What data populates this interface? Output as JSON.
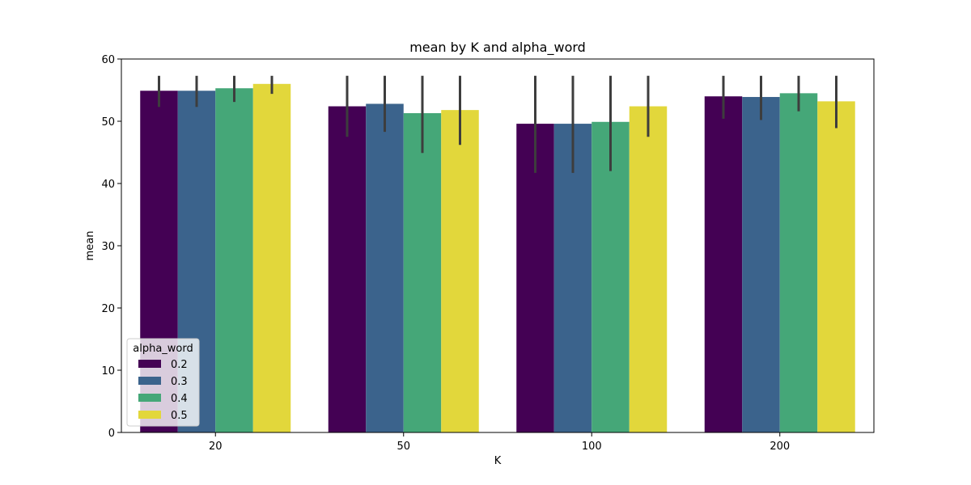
{
  "chart_data": {
    "type": "bar",
    "title": "mean by K and alpha_word",
    "xlabel": "K",
    "ylabel": "mean",
    "categories": [
      "20",
      "50",
      "100",
      "200"
    ],
    "ylim": [
      0,
      60
    ],
    "yticks": [
      0,
      10,
      20,
      30,
      40,
      50,
      60
    ],
    "grid": false,
    "legend": {
      "title": "alpha_word",
      "placement": "lower-left"
    },
    "series": [
      {
        "name": "0.2",
        "color": "#440154",
        "values": [
          54.9,
          52.4,
          49.6,
          54.0
        ],
        "err_low": [
          52.3,
          47.5,
          41.7,
          50.4
        ],
        "err_high": [
          57.3,
          57.3,
          57.3,
          57.3
        ]
      },
      {
        "name": "0.3",
        "color": "#3b638c",
        "values": [
          54.9,
          52.8,
          49.6,
          53.9
        ],
        "err_low": [
          52.3,
          48.3,
          41.7,
          50.2
        ],
        "err_high": [
          57.3,
          57.3,
          57.3,
          57.3
        ]
      },
      {
        "name": "0.4",
        "color": "#45a778",
        "values": [
          55.3,
          51.3,
          49.9,
          54.5
        ],
        "err_low": [
          53.1,
          44.9,
          42.0,
          51.6
        ],
        "err_high": [
          57.3,
          57.3,
          57.3,
          57.3
        ]
      },
      {
        "name": "0.5",
        "color": "#e2d73b",
        "values": [
          56.0,
          51.8,
          52.4,
          53.2
        ],
        "err_low": [
          54.4,
          46.2,
          47.5,
          48.9
        ],
        "err_high": [
          57.3,
          57.3,
          57.3,
          57.3
        ]
      }
    ]
  }
}
